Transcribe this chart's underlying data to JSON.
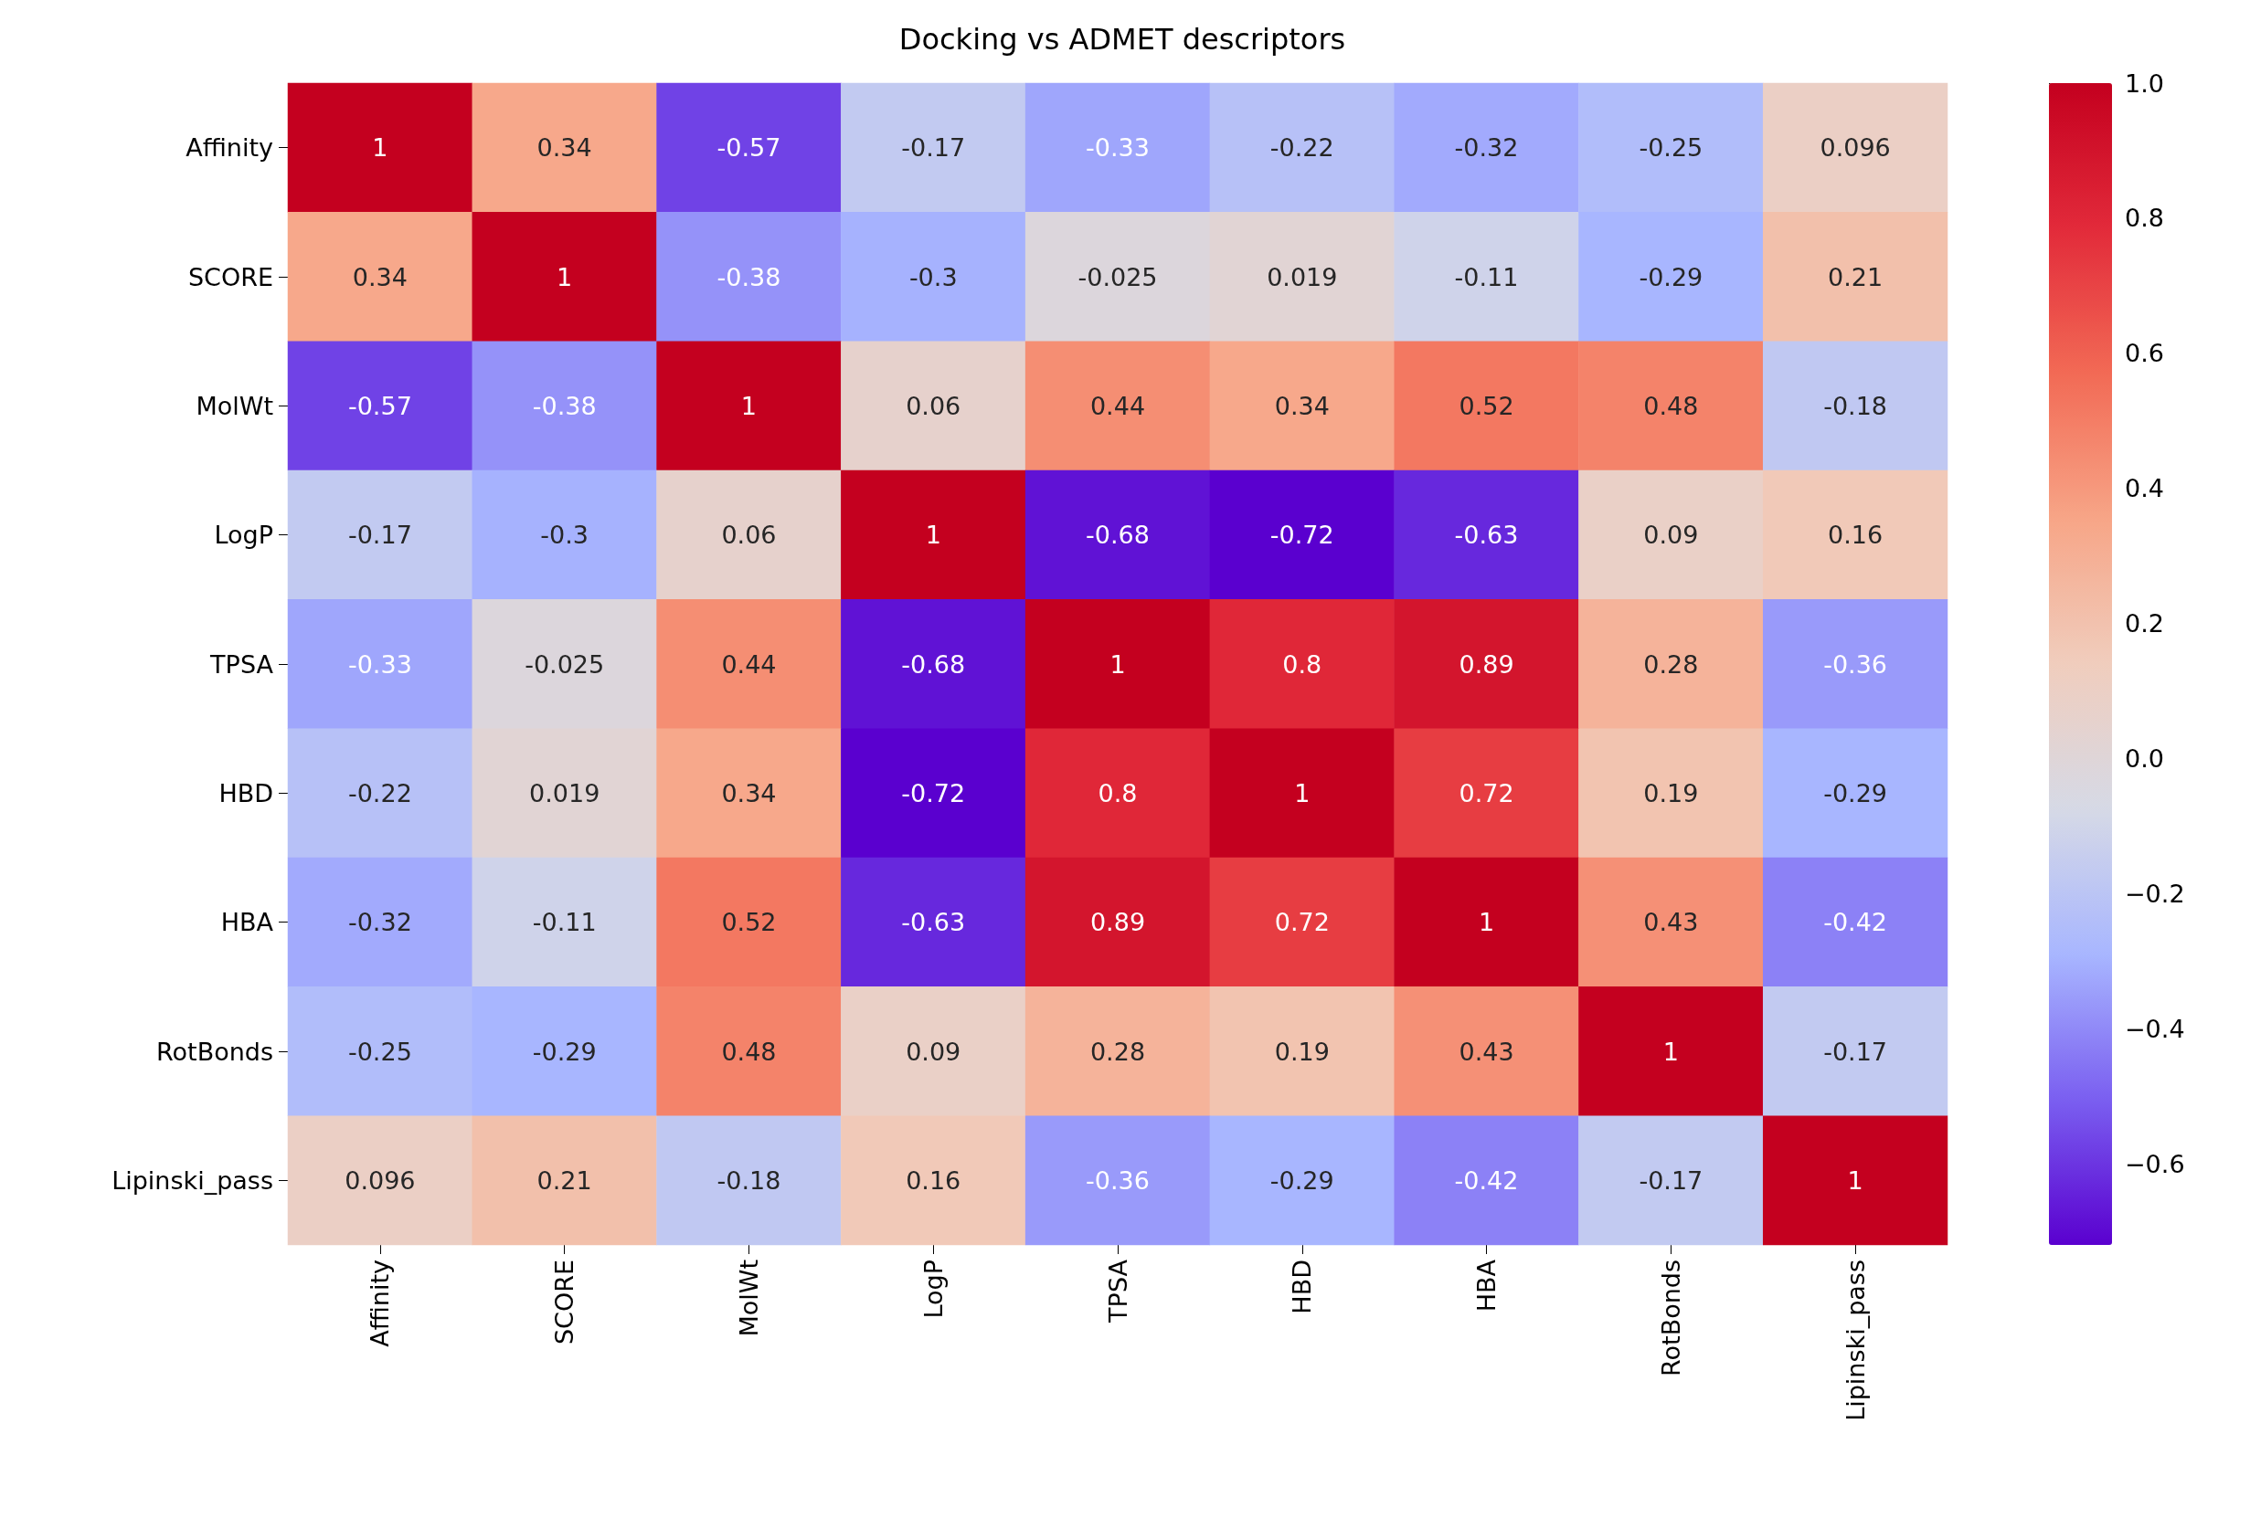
{
  "chart_data": {
    "type": "heatmap",
    "title": "Docking vs ADMET descriptors",
    "categories": [
      "Affinity",
      "SCORE",
      "MolWt",
      "LogP",
      "TPSA",
      "HBD",
      "HBA",
      "RotBonds",
      "Lipinski_pass"
    ],
    "y_categories": [
      "Affinity",
      "SCORE",
      "MolWt",
      "LogP",
      "TPSA",
      "HBD",
      "HBA",
      "RotBonds",
      "Lipinski_pass"
    ],
    "cells": [
      [
        1,
        0.34,
        -0.57,
        -0.17,
        -0.33,
        -0.22,
        -0.32,
        -0.25,
        0.096
      ],
      [
        0.34,
        1,
        -0.38,
        -0.3,
        -0.025,
        0.019,
        -0.11,
        -0.29,
        0.21
      ],
      [
        -0.57,
        -0.38,
        1,
        0.06,
        0.44,
        0.34,
        0.52,
        0.48,
        -0.18
      ],
      [
        -0.17,
        -0.3,
        0.06,
        1,
        -0.68,
        -0.72,
        -0.63,
        0.09,
        0.16
      ],
      [
        -0.33,
        -0.025,
        0.44,
        -0.68,
        1,
        0.8,
        0.89,
        0.28,
        -0.36
      ],
      [
        -0.22,
        0.019,
        0.34,
        -0.72,
        0.8,
        1,
        0.72,
        0.19,
        -0.29
      ],
      [
        -0.32,
        -0.11,
        0.52,
        -0.63,
        0.89,
        0.72,
        1,
        0.43,
        -0.42
      ],
      [
        -0.25,
        -0.29,
        0.48,
        0.09,
        0.28,
        0.19,
        0.43,
        1,
        -0.17
      ],
      [
        0.096,
        0.21,
        -0.18,
        0.16,
        -0.36,
        -0.29,
        -0.42,
        -0.17,
        1
      ]
    ],
    "data_labels": true,
    "clim": [
      -0.72,
      1
    ],
    "cticks": [
      {
        "value": -0.6,
        "label": "−0.6"
      },
      {
        "value": -0.4,
        "label": "−0.4"
      },
      {
        "value": -0.2,
        "label": "−0.2"
      },
      {
        "value": 0,
        "label": "0.0"
      },
      {
        "value": 0.2,
        "label": "0.2"
      },
      {
        "value": 0.4,
        "label": "0.4"
      },
      {
        "value": 0.6,
        "label": "0.6"
      },
      {
        "value": 0.8,
        "label": "0.8"
      },
      {
        "value": 1,
        "label": "1.0"
      }
    ]
  }
}
